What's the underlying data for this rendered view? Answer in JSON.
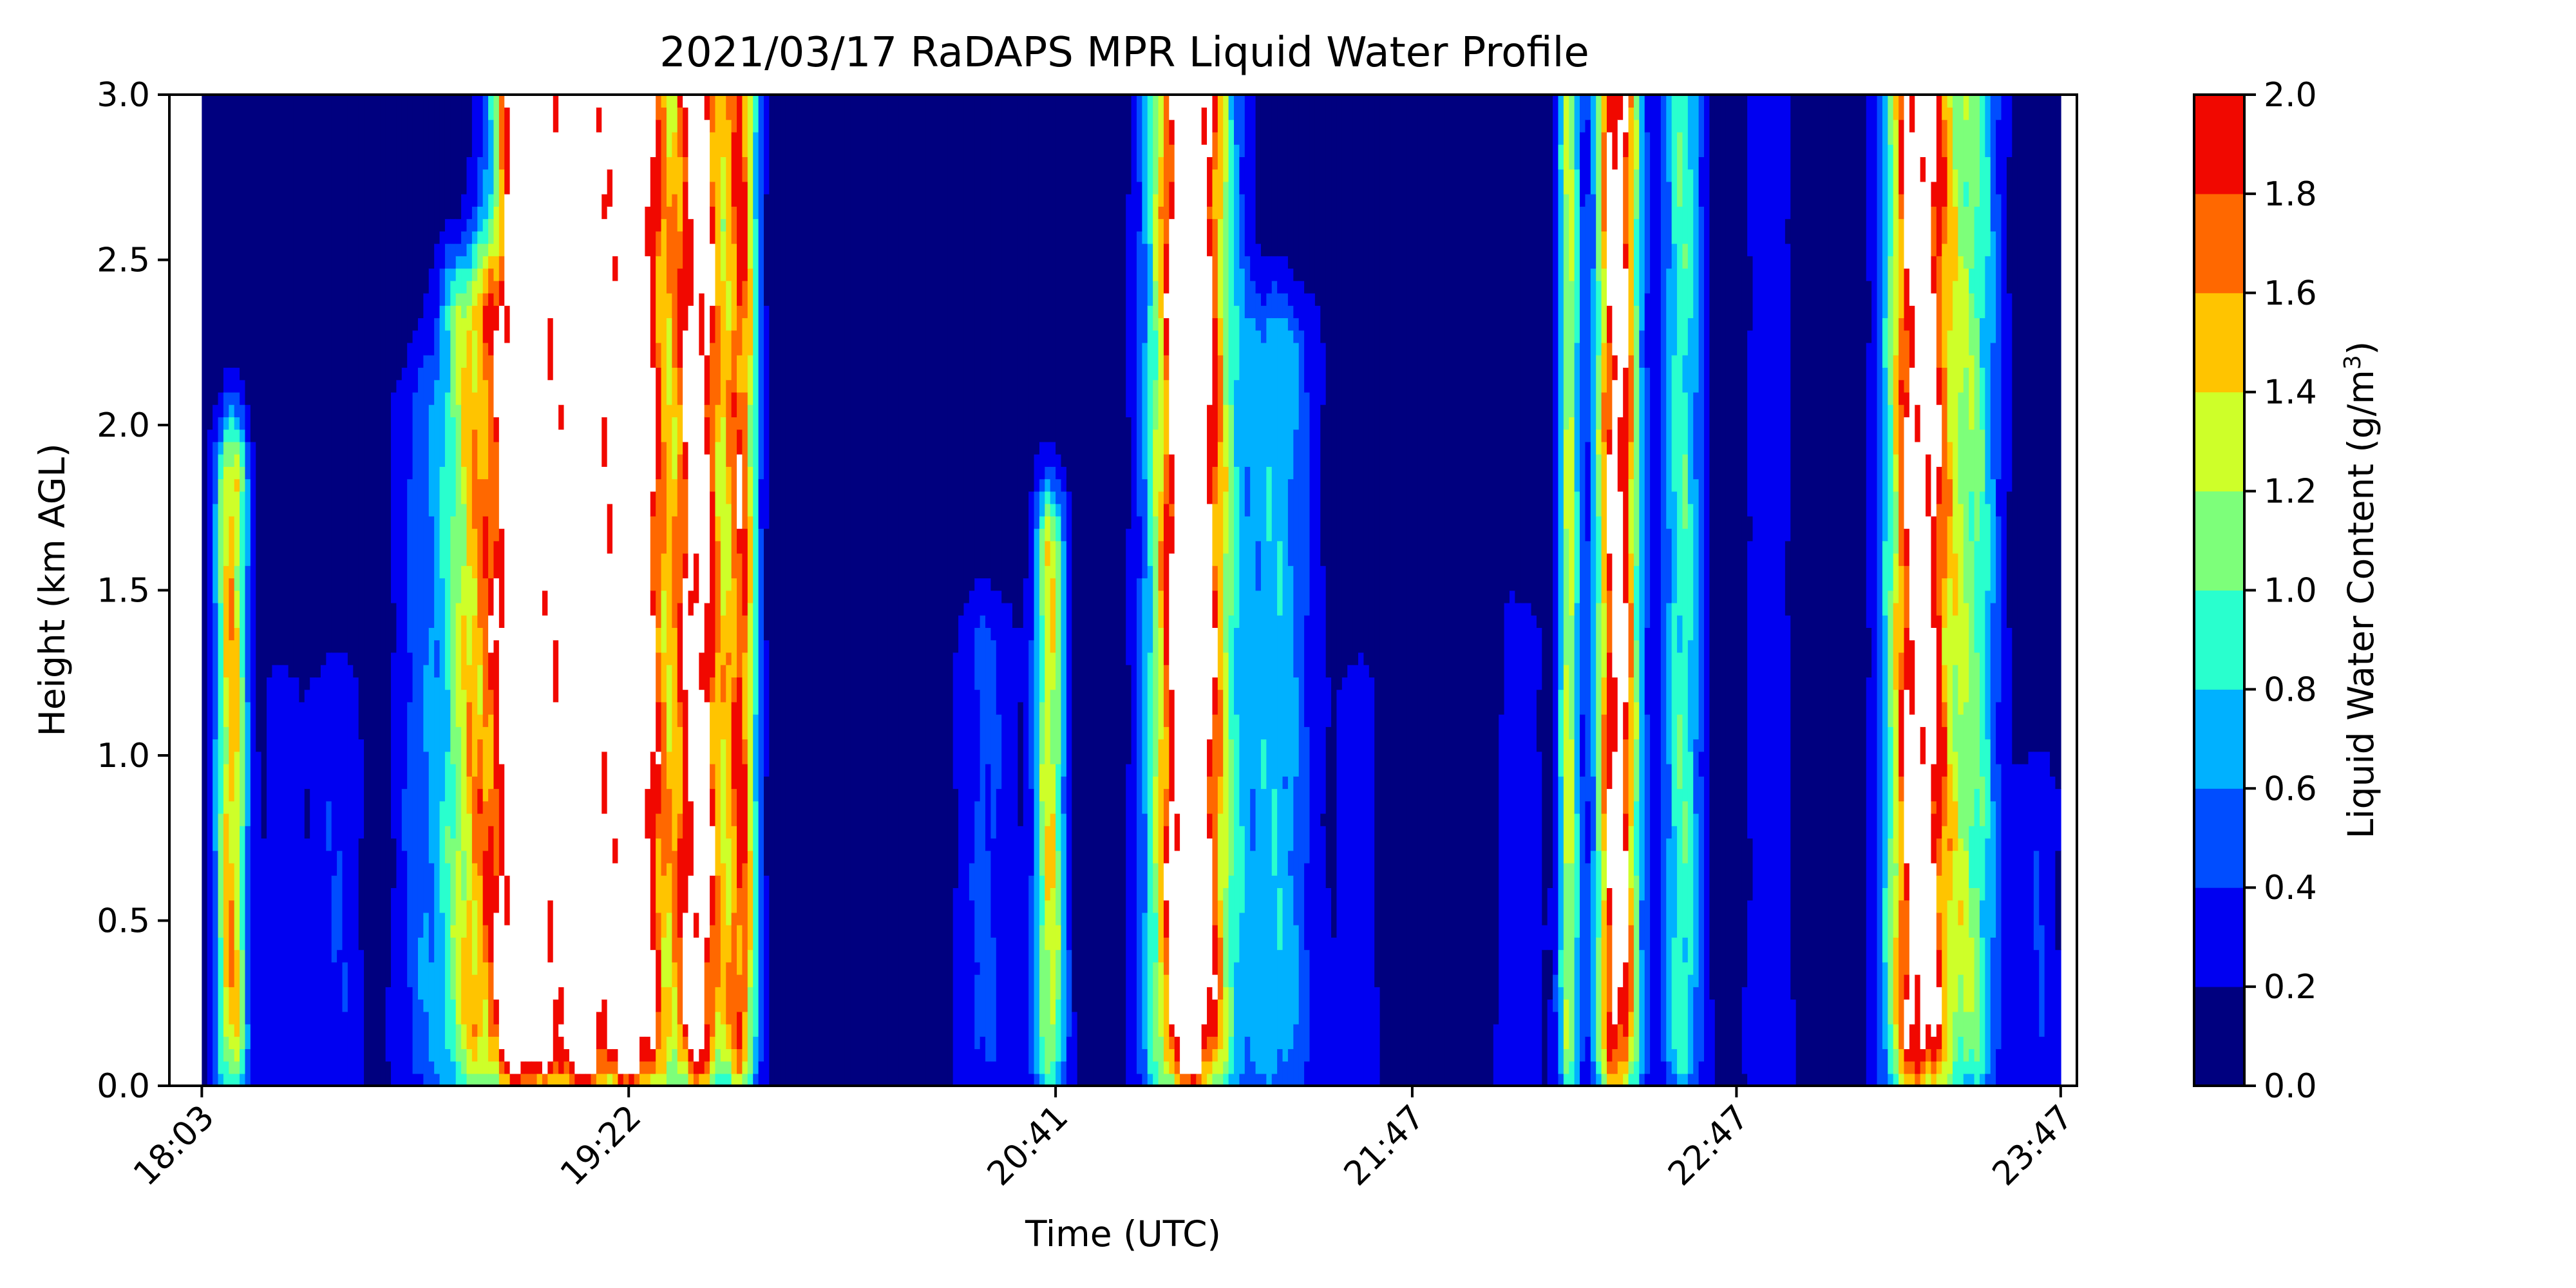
{
  "chart_data": {
    "type": "heatmap",
    "title": "2021/03/17 RaDAPS MPR Liquid Water Profile",
    "xlabel": "Time (UTC)",
    "ylabel": "Height (km AGL)",
    "colorbar_label_prefix": "Liquid Water Content (g/m",
    "colorbar_label_sup": "3",
    "colorbar_label_suffix": ")",
    "x_ticks": [
      "18:03",
      "19:22",
      "20:41",
      "21:47",
      "22:47",
      "23:47"
    ],
    "x_tick_minutes": [
      0,
      79,
      158,
      224,
      284,
      344
    ],
    "x_range_minutes": [
      -6,
      347
    ],
    "y_ticks": [
      "0.0",
      "0.5",
      "1.0",
      "1.5",
      "2.0",
      "2.5",
      "3.0"
    ],
    "ylim": [
      0,
      3
    ],
    "levels": [
      0.0,
      0.2,
      0.4,
      0.6,
      0.8,
      1.0,
      1.2,
      1.4,
      1.6,
      1.8,
      2.0
    ],
    "level_labels": [
      "0.0",
      "0.2",
      "0.4",
      "0.6",
      "0.8",
      "1.0",
      "1.2",
      "1.4",
      "1.6",
      "1.8",
      "2.0"
    ],
    "colors": [
      "#00007f",
      "#0000f1",
      "#004dff",
      "#00b1ff",
      "#29ffce",
      "#7dff7a",
      "#ceff29",
      "#ffc400",
      "#ff6800",
      "#f10800",
      "#7f0000"
    ],
    "over_color": "#ffffff",
    "cloud_events": [
      {
        "t": 5.5,
        "w": 3,
        "peak": 1.5,
        "top": 1.8
      },
      {
        "t": 15,
        "w": 4,
        "peak": 0.3,
        "top": 1.1
      },
      {
        "t": 25,
        "w": 5,
        "peak": 0.35,
        "top": 1.1
      },
      {
        "t": 40,
        "w": 5,
        "peak": 0.4,
        "top": 2.0
      },
      {
        "t": 50,
        "w": 6,
        "peak": 1.3,
        "top": 2.3
      },
      {
        "t": 60,
        "w": 6,
        "peak": 2.6,
        "top": 3.0
      },
      {
        "t": 70,
        "w": 5,
        "peak": 2.4,
        "top": 3.0
      },
      {
        "t": 80,
        "w": 6,
        "peak": 2.6,
        "top": 3.0
      },
      {
        "t": 92,
        "w": 5,
        "peak": 2.2,
        "top": 3.0
      },
      {
        "t": 100,
        "w": 3,
        "peak": 1.6,
        "top": 3.0
      },
      {
        "t": 145,
        "w": 6,
        "peak": 0.4,
        "top": 1.3
      },
      {
        "t": 157,
        "w": 3,
        "peak": 1.3,
        "top": 1.6
      },
      {
        "t": 183,
        "w": 7,
        "peak": 2.6,
        "top": 3.0
      },
      {
        "t": 199,
        "w": 7,
        "peak": 0.7,
        "top": 2.2
      },
      {
        "t": 214,
        "w": 4,
        "peak": 0.3,
        "top": 1.1
      },
      {
        "t": 244,
        "w": 5,
        "peak": 0.3,
        "top": 1.3
      },
      {
        "t": 253,
        "w": 2,
        "peak": 1.2,
        "top": 3.0
      },
      {
        "t": 262,
        "w": 4,
        "peak": 2.2,
        "top": 3.0
      },
      {
        "t": 274,
        "w": 4,
        "peak": 0.9,
        "top": 3.0
      },
      {
        "t": 290,
        "w": 5,
        "peak": 0.3,
        "top": 3.0
      },
      {
        "t": 318,
        "w": 6,
        "peak": 2.3,
        "top": 3.0
      },
      {
        "t": 328,
        "w": 5,
        "peak": 0.9,
        "top": 3.0
      },
      {
        "t": 340,
        "w": 4,
        "peak": 0.35,
        "top": 0.8
      }
    ]
  }
}
